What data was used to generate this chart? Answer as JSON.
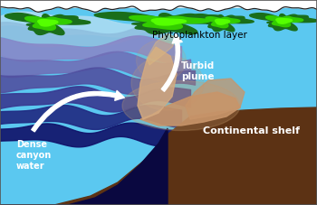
{
  "figsize": [
    3.5,
    2.27
  ],
  "dpi": 100,
  "bg_color": "#FFFFFF",
  "ocean_bg": "#5BC8F0",
  "shelf_color": "#5C3214",
  "deep_water_color": "#0A0A50",
  "plume_color": "#C8956A",
  "plume_color2": "#D4AA80",
  "text_phyto": "Phytoplankton layer",
  "text_turbid": "Turbid\nplume",
  "text_shelf": "Continental shelf",
  "text_canyon": "Dense\ncanyon\nwater",
  "border_color": "#555555",
  "layer_colors": [
    "#AAD8F0",
    "#88B8D8",
    "#8888C8",
    "#7060B0",
    "#503898",
    "#302878",
    "#181858",
    "#0E0E48"
  ],
  "phyto_outer": "#228822",
  "phyto_inner": "#44EE00"
}
